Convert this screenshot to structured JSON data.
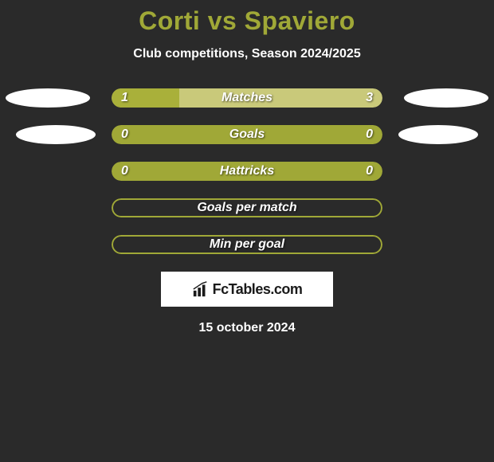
{
  "title": "Corti vs Spaviero",
  "subtitle": "Club competitions, Season 2024/2025",
  "date": "15 october 2024",
  "logo": {
    "text": "FcTables.com"
  },
  "colors": {
    "accent": "#a0a837",
    "bar_fill": "#a9b03a",
    "bar_bg_light": "#c9c97a",
    "bar_empty": "#a0a837",
    "background": "#2a2a2a",
    "text": "#ffffff",
    "blob": "#ffffff"
  },
  "stats": [
    {
      "label": "Matches",
      "left_value": "1",
      "right_value": "3",
      "left_pct": 25,
      "bg_color": "#c9c97a",
      "fill_color": "#a9b03a",
      "bordered": false,
      "show_blobs": true,
      "blob_class_left": "blob-left-1",
      "blob_class_right": "blob-right-1"
    },
    {
      "label": "Goals",
      "left_value": "0",
      "right_value": "0",
      "left_pct": 0,
      "bg_color": "#a0a837",
      "fill_color": "#a9b03a",
      "bordered": false,
      "show_blobs": true,
      "blob_class_left": "blob-left-2",
      "blob_class_right": "blob-right-2"
    },
    {
      "label": "Hattricks",
      "left_value": "0",
      "right_value": "0",
      "left_pct": 0,
      "bg_color": "#a0a837",
      "fill_color": "#a9b03a",
      "bordered": false,
      "show_blobs": false
    },
    {
      "label": "Goals per match",
      "left_value": "",
      "right_value": "",
      "left_pct": 0,
      "bg_color": "#2a2a2a",
      "fill_color": "#a9b03a",
      "bordered": true,
      "show_blobs": false
    },
    {
      "label": "Min per goal",
      "left_value": "",
      "right_value": "",
      "left_pct": 0,
      "bg_color": "#2a2a2a",
      "fill_color": "#a9b03a",
      "bordered": true,
      "show_blobs": false
    }
  ]
}
